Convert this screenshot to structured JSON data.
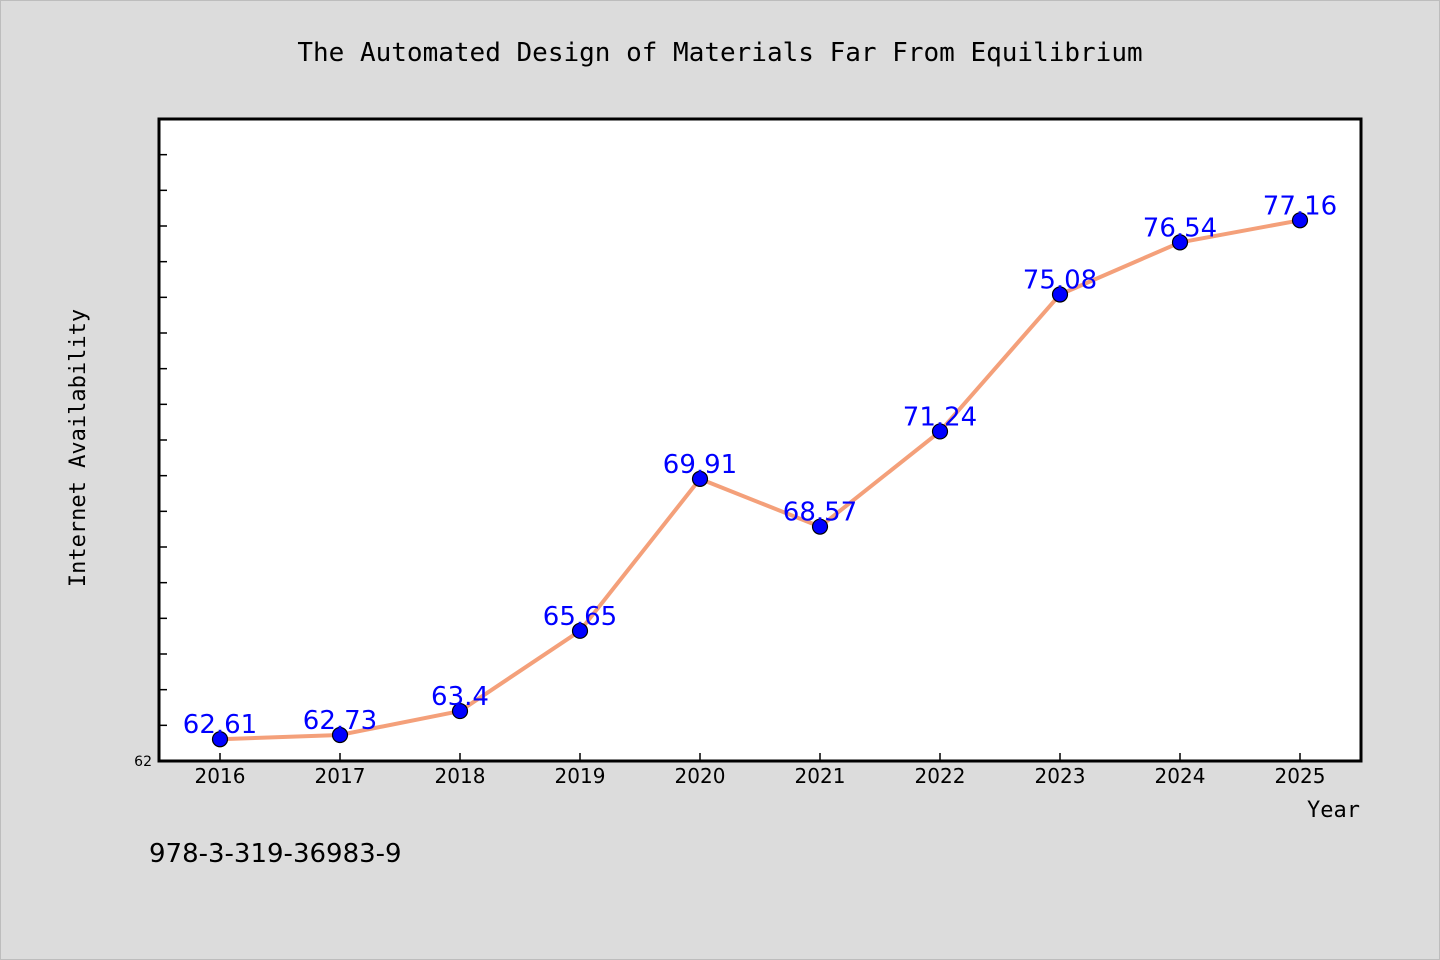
{
  "chart_data": {
    "type": "line",
    "title": "The Automated Design of Materials Far From Equilibrium",
    "xlabel": "Year",
    "ylabel": "Internet Availability",
    "categories": [
      "2016",
      "2017",
      "2018",
      "2019",
      "2020",
      "2021",
      "2022",
      "2023",
      "2024",
      "2025"
    ],
    "values": [
      62.61,
      62.73,
      63.4,
      65.65,
      69.91,
      68.57,
      71.24,
      75.08,
      76.54,
      77.16
    ],
    "data_labels": [
      "62.61",
      "62.73",
      "63.4",
      "65.65",
      "69.91",
      "68.57",
      "71.24",
      "75.08",
      "76.54",
      "77.16"
    ],
    "ylim": [
      62,
      80
    ],
    "y_tick_labels": [
      "62"
    ],
    "grid": false,
    "line_color": "#f4a07a",
    "marker_color": "#0000ff",
    "label_color": "#0000ff"
  },
  "footer": {
    "isbn": "978-3-319-36983-9"
  }
}
